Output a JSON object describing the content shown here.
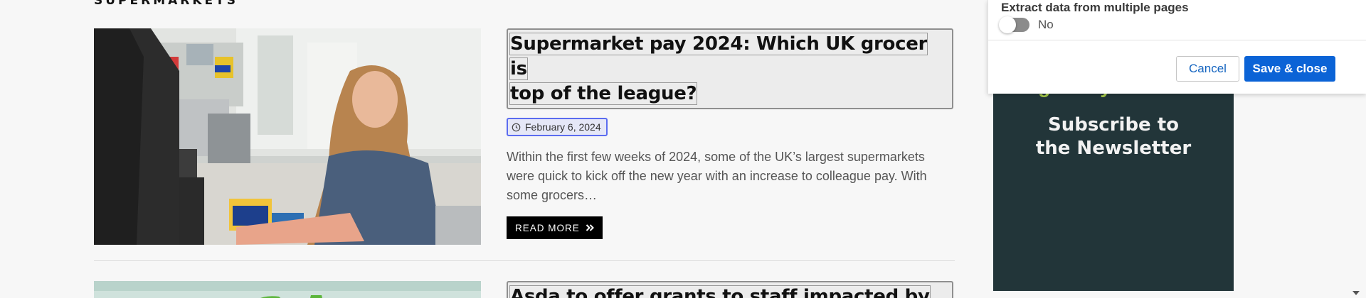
{
  "section": {
    "heading": "SUPERMARKETS"
  },
  "articles": [
    {
      "title": "Supermarket pay 2024: Which UK grocer is top of the league?",
      "title_line1": "Supermarket pay 2024: Which UK grocer is",
      "title_line2": "top of the league?",
      "date": "February 6, 2024",
      "excerpt": "Within the first few weeks of 2024, some of the UK’s largest supermarkets were quick to kick off the new year with an increase to colleague pay. With some grocers…",
      "read_more": "READ MORE"
    },
    {
      "title": "Asda to offer grants to staff impacted by"
    }
  ],
  "ad": {
    "brand_tail": "grocery Gazette",
    "headline_line1": "Subscribe to",
    "headline_line2": "the Newsletter"
  },
  "panel": {
    "label": "Extract data from multiple pages",
    "toggle_text": "No",
    "toggle_on": false,
    "cancel_label": "Cancel",
    "save_label": "Save & close"
  },
  "icons": {
    "date": "clock-icon",
    "read_more": "double-chevron-right-icon",
    "scroll": "scroll-down-arrow-icon"
  },
  "colors": {
    "primary_button": "#0b63d6",
    "ad_background": "#223539",
    "ad_brand": "#a6c94a",
    "date_chip_border": "#5b6cf0"
  }
}
